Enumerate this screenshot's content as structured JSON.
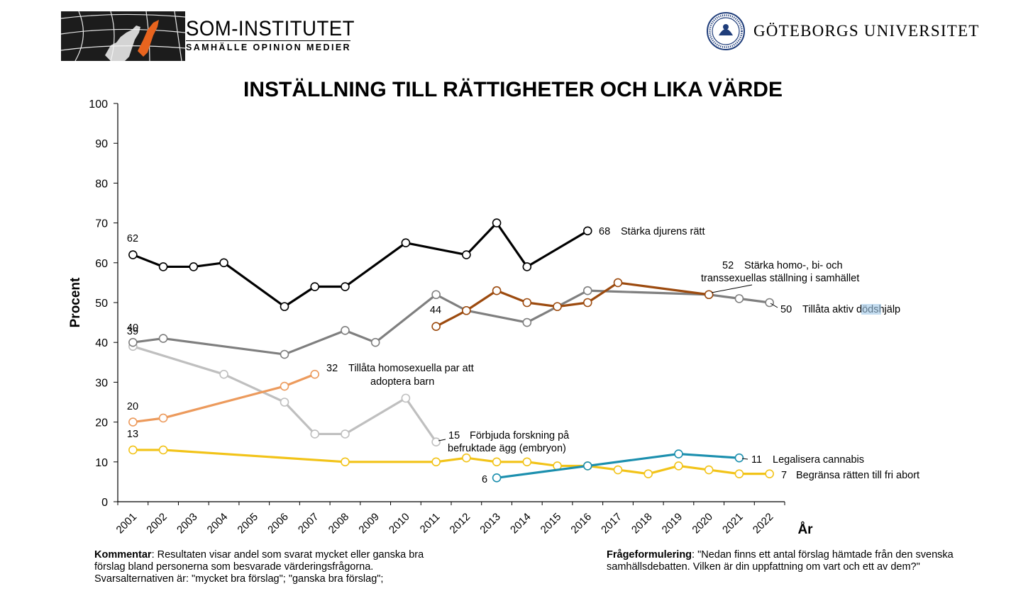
{
  "header": {
    "som_name": "SOM-INSTITUTET",
    "som_sub": "SAMHÄLLE OPINION MEDIER",
    "gu_name": "GÖTEBORGS UNIVERSITET"
  },
  "chart_data": {
    "type": "line",
    "title": "INSTÄLLNING TILL RÄTTIGHETER OCH LIKA VÄRDE",
    "ylabel": "Procent",
    "xlabel": "År",
    "ylim": [
      0,
      100
    ],
    "yticks": [
      "0",
      "10",
      "20",
      "30",
      "40",
      "50",
      "60",
      "70",
      "80",
      "90",
      "100"
    ],
    "categories": [
      "2001",
      "2002",
      "2003",
      "2004",
      "2005",
      "2006",
      "2007",
      "2008",
      "2009",
      "2010",
      "2011",
      "2012",
      "2013",
      "2014",
      "2015",
      "2016",
      "2017",
      "2018",
      "2019",
      "2020",
      "2021",
      "2022"
    ],
    "grid": false,
    "series": [
      {
        "name": "Stärka djurens rätt",
        "color": "#000000",
        "points": [
          [
            "2001",
            62
          ],
          [
            "2002",
            59
          ],
          [
            "2003",
            59
          ],
          [
            "2004",
            60
          ],
          [
            "2006",
            49
          ],
          [
            "2007",
            54
          ],
          [
            "2008",
            54
          ],
          [
            "2010",
            65
          ],
          [
            "2012",
            62
          ],
          [
            "2013",
            70
          ],
          [
            "2014",
            59
          ],
          [
            "2016",
            68
          ]
        ],
        "first_label": "62",
        "end_label": "68"
      },
      {
        "name": "Tillåta aktiv dödshjälp",
        "color": "#7f7f7f",
        "points": [
          [
            "2001",
            40
          ],
          [
            "2002",
            41
          ],
          [
            "2006",
            37
          ],
          [
            "2008",
            43
          ],
          [
            "2009",
            40
          ],
          [
            "2011",
            52
          ],
          [
            "2012",
            48
          ],
          [
            "2014",
            45
          ],
          [
            "2016",
            53
          ],
          [
            "2020",
            52
          ],
          [
            "2021",
            51
          ],
          [
            "2022",
            50
          ]
        ],
        "first_label": "40",
        "end_label": "50"
      },
      {
        "name": "Stärka homo-, bi- och transsexuellas ställning i samhället",
        "color": "#9c4a0e",
        "points": [
          [
            "2011",
            44
          ],
          [
            "2012",
            48
          ],
          [
            "2013",
            53
          ],
          [
            "2014",
            50
          ],
          [
            "2015",
            49
          ],
          [
            "2016",
            50
          ],
          [
            "2017",
            55
          ],
          [
            "2020",
            52
          ]
        ],
        "first_label": "44",
        "end_label": "52"
      },
      {
        "name": "Förbjuda forskning på befruktade ägg (embryon)",
        "color": "#bfbfbf",
        "points": [
          [
            "2001",
            39
          ],
          [
            "2004",
            32
          ],
          [
            "2006",
            25
          ],
          [
            "2007",
            17
          ],
          [
            "2008",
            17
          ],
          [
            "2010",
            26
          ],
          [
            "2011",
            15
          ]
        ],
        "first_label": "39",
        "end_label": "15"
      },
      {
        "name": "Tillåta homosexuella par att adoptera barn",
        "color": "#ec9a5c",
        "points": [
          [
            "2001",
            20
          ],
          [
            "2002",
            21
          ],
          [
            "2006",
            29
          ],
          [
            "2007",
            32
          ]
        ],
        "first_label": "20",
        "end_label": "32"
      },
      {
        "name": "Begränsa rätten till fri abort",
        "color": "#f2c318",
        "points": [
          [
            "2001",
            13
          ],
          [
            "2002",
            13
          ],
          [
            "2008",
            10
          ],
          [
            "2011",
            10
          ],
          [
            "2012",
            11
          ],
          [
            "2013",
            10
          ],
          [
            "2014",
            10
          ],
          [
            "2015",
            9
          ],
          [
            "2016",
            9
          ],
          [
            "2017",
            8
          ],
          [
            "2018",
            7
          ],
          [
            "2019",
            9
          ],
          [
            "2020",
            8
          ],
          [
            "2021",
            7
          ],
          [
            "2022",
            7
          ]
        ],
        "first_label": "13",
        "end_label": "7"
      },
      {
        "name": "Legalisera cannabis",
        "color": "#1b8fae",
        "points": [
          [
            "2013",
            6
          ],
          [
            "2016",
            9
          ],
          [
            "2019",
            12
          ],
          [
            "2021",
            11
          ]
        ],
        "first_label": "6",
        "end_label": "11"
      }
    ],
    "labels": {
      "animal": "Stärka djurens rätt",
      "hbt_line1": "Stärka homo-, bi- och",
      "hbt_line2": "transsexuellas ställning i samhället",
      "euth_pre": "Tillåta aktiv ",
      "euth_hl": "död",
      "euth_post": "shjälp",
      "adopt_line1": "Tillåta homosexuella par att",
      "adopt_line2": "adoptera barn",
      "embryo_line1": "Förbjuda forskning på",
      "embryo_line2": "befruktade ägg (embryon)",
      "cannabis": "Legalisera cannabis",
      "abort": "Begränsa rätten till fri abort"
    }
  },
  "footer": {
    "comment_bold": "Kommentar",
    "comment_text": ": Resultaten visar andel som svarat mycket eller ganska bra förslag bland personerna som besvarade värderingsfrågorna. Svarsalternativen är: \"mycket bra förslag\"; \"ganska bra förslag\";",
    "question_bold": "Frågeformulering",
    "question_text": ": \"Nedan finns ett antal förslag hämtade från den svenska samhällsdebatten. Vilken är din uppfattning om vart och ett av dem?\""
  }
}
